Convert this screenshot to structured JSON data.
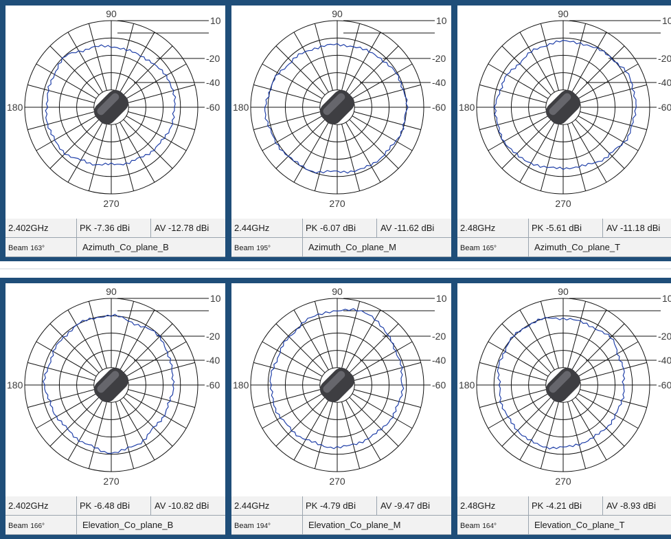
{
  "colors": {
    "frame": "#1f4e79",
    "trace": "#1f3fa8",
    "grid": "#111111",
    "table_bg": "#f2f2f2"
  },
  "chart_data": [
    {
      "type": "polar",
      "freq": "2.402GHz",
      "pk": "PK -7.36 dBi",
      "av": "AV -12.78 dBi",
      "beam_label": "Beam",
      "beam_value": "163°",
      "plane": "Azimuth_Co_plane_B",
      "angle_label_top": "90",
      "angle_label_left": "180",
      "angle_label_bottom": "270",
      "radial_labels": [
        "10",
        "-20",
        "-40",
        "-60"
      ],
      "angles_deg": [
        0,
        22.5,
        45,
        67.5,
        90,
        112.5,
        135,
        157.5,
        180,
        202.5,
        225,
        247.5,
        270,
        292.5,
        315,
        337.5
      ],
      "radii_norm": [
        0.73,
        0.74,
        0.7,
        0.68,
        0.7,
        0.73,
        0.79,
        0.75,
        0.75,
        0.76,
        0.75,
        0.69,
        0.66,
        0.67,
        0.69,
        0.72
      ]
    },
    {
      "type": "polar",
      "freq": "2.44GHz",
      "pk": "PK -6.07 dBi",
      "av": "AV -11.62 dBi",
      "beam_label": "Beam",
      "beam_value": "195°",
      "plane": "Azimuth_Co_plane_M",
      "angle_label_top": "90",
      "angle_label_left": "180",
      "angle_label_bottom": "270",
      "radial_labels": [
        "10",
        "-20",
        "-40",
        "-60"
      ],
      "angles_deg": [
        0,
        22.5,
        45,
        67.5,
        90,
        112.5,
        135,
        157.5,
        180,
        202.5,
        225,
        247.5,
        270,
        292.5,
        315,
        337.5
      ],
      "radii_norm": [
        0.8,
        0.79,
        0.76,
        0.73,
        0.72,
        0.73,
        0.75,
        0.79,
        0.83,
        0.82,
        0.8,
        0.79,
        0.74,
        0.77,
        0.77,
        0.79
      ]
    },
    {
      "type": "polar",
      "freq": "2.48GHz",
      "pk": "PK -5.61 dBi",
      "av": "AV -11.18 dBi",
      "beam_label": "Beam",
      "beam_value": "165°",
      "plane": "Azimuth_Co_plane_T",
      "angle_label_top": "90",
      "angle_label_left": "180",
      "angle_label_bottom": "270",
      "radial_labels": [
        "10",
        "-20",
        "-40",
        "-60"
      ],
      "angles_deg": [
        0,
        22.5,
        45,
        67.5,
        90,
        112.5,
        135,
        157.5,
        180,
        202.5,
        225,
        247.5,
        270,
        292.5,
        315,
        337.5
      ],
      "radii_norm": [
        0.84,
        0.84,
        0.8,
        0.77,
        0.76,
        0.74,
        0.72,
        0.75,
        0.78,
        0.79,
        0.77,
        0.73,
        0.7,
        0.72,
        0.77,
        0.82
      ]
    },
    {
      "type": "polar",
      "freq": "2.402GHz",
      "pk": "PK -6.48 dBi",
      "av": "AV -10.82 dBi",
      "beam_label": "Beam",
      "beam_value": "166°",
      "plane": "Elevation_Co_plane_B",
      "angle_label_top": "90",
      "angle_label_left": "180",
      "angle_label_bottom": "270",
      "radial_labels": [
        "10",
        "-20",
        "-40",
        "-60"
      ],
      "angles_deg": [
        0,
        22.5,
        45,
        67.5,
        90,
        112.5,
        135,
        157.5,
        180,
        202.5,
        225,
        247.5,
        270,
        292.5,
        315,
        337.5
      ],
      "radii_norm": [
        0.72,
        0.73,
        0.79,
        0.76,
        0.8,
        0.8,
        0.78,
        0.76,
        0.77,
        0.73,
        0.72,
        0.74,
        0.78,
        0.75,
        0.7,
        0.7
      ]
    },
    {
      "type": "polar",
      "freq": "2.44GHz",
      "pk": "PK -4.79 dBi",
      "av": "AV -9.47 dBi",
      "beam_label": "Beam",
      "beam_value": "194°",
      "plane": "Elevation_Co_plane_M",
      "angle_label_top": "90",
      "angle_label_left": "180",
      "angle_label_bottom": "270",
      "radial_labels": [
        "10",
        "-20",
        "-40",
        "-60"
      ],
      "angles_deg": [
        0,
        22.5,
        45,
        67.5,
        90,
        112.5,
        135,
        157.5,
        180,
        202.5,
        225,
        247.5,
        270,
        292.5,
        315,
        337.5
      ],
      "radii_norm": [
        0.75,
        0.77,
        0.82,
        0.9,
        0.86,
        0.83,
        0.78,
        0.76,
        0.77,
        0.76,
        0.74,
        0.72,
        0.72,
        0.71,
        0.72,
        0.74
      ]
    },
    {
      "type": "polar",
      "freq": "2.48GHz",
      "pk": "PK -4.21 dBi",
      "av": "AV -8.93 dBi",
      "beam_label": "Beam",
      "beam_value": "164°",
      "plane": "Elevation_Co_plane_T",
      "angle_label_top": "90",
      "angle_label_left": "180",
      "angle_label_bottom": "270",
      "radial_labels": [
        "10",
        "-20",
        "-40",
        "-60"
      ],
      "angles_deg": [
        0,
        22.5,
        45,
        67.5,
        90,
        112.5,
        135,
        157.5,
        180,
        202.5,
        225,
        247.5,
        270,
        292.5,
        315,
        337.5
      ],
      "radii_norm": [
        0.7,
        0.72,
        0.77,
        0.75,
        0.77,
        0.8,
        0.8,
        0.78,
        0.74,
        0.74,
        0.74,
        0.75,
        0.72,
        0.7,
        0.7,
        0.7
      ]
    }
  ]
}
